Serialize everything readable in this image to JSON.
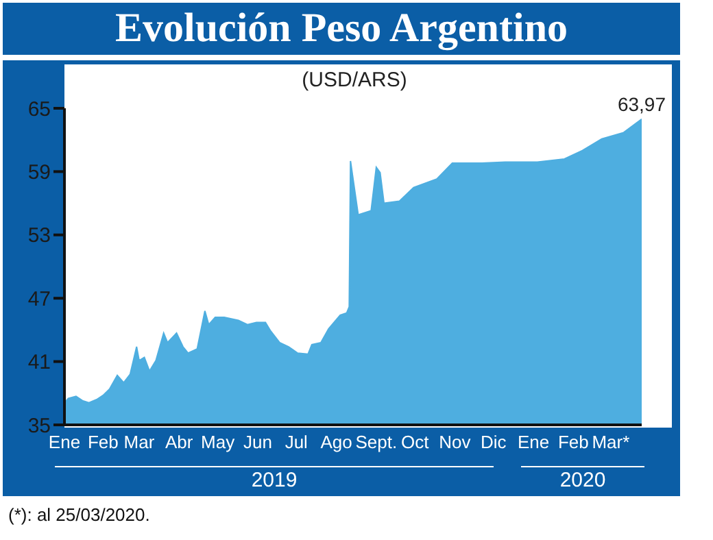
{
  "chart_data": {
    "type": "area",
    "title": "Evolución Peso Argentino",
    "subtitle": "(USD/ARS)",
    "annotations": [
      "2019",
      "2020",
      "(*): al 25/03/2020."
    ],
    "x": [
      "2019-01-02",
      "2019-01-05",
      "2019-01-11",
      "2019-01-16",
      "2019-01-21",
      "2019-01-27",
      "2019-02-01",
      "2019-02-06",
      "2019-02-12",
      "2019-02-17",
      "2019-02-22",
      "2019-02-27",
      "2019-03-01",
      "2019-03-05",
      "2019-03-09",
      "2019-03-14",
      "2019-03-20",
      "2019-03-23",
      "2019-03-30",
      "2019-04-04",
      "2019-04-08",
      "2019-04-15",
      "2019-04-21",
      "2019-04-24",
      "2019-04-29",
      "2019-05-06",
      "2019-05-17",
      "2019-05-24",
      "2019-05-31",
      "2019-06-07",
      "2019-06-11",
      "2019-06-18",
      "2019-06-25",
      "2019-07-02",
      "2019-07-10",
      "2019-07-13",
      "2019-07-20",
      "2019-07-26",
      "2019-08-04",
      "2019-08-09",
      "2019-08-11",
      "2019-08-12",
      "2019-08-18",
      "2019-08-28",
      "2019-09-01",
      "2019-09-04",
      "2019-09-07",
      "2019-09-19",
      "2019-09-30",
      "2019-10-18",
      "2019-10-30",
      "2019-11-22",
      "2019-12-10",
      "2020-01-04",
      "2020-01-25",
      "2020-02-08",
      "2020-02-23",
      "2020-03-11",
      "2020-03-25"
    ],
    "series": [
      {
        "color": "#4eaee0",
        "values": [
          37.1,
          37.5,
          37.7,
          37.3,
          37.1,
          37.4,
          37.8,
          38.4,
          39.7,
          39.0,
          39.8,
          42.4,
          41.1,
          41.4,
          40.1,
          41.1,
          43.7,
          42.8,
          43.7,
          42.4,
          41.8,
          42.2,
          45.8,
          44.5,
          45.2,
          45.2,
          44.9,
          44.5,
          44.7,
          44.7,
          43.9,
          42.8,
          42.4,
          41.8,
          41.7,
          42.6,
          42.8,
          44.1,
          45.4,
          45.6,
          46.2,
          60.0,
          54.9,
          55.3,
          59.4,
          58.9,
          56.0,
          56.2,
          57.5,
          58.3,
          59.8,
          59.8,
          59.9,
          59.9,
          60.2,
          61.0,
          62.1,
          62.7,
          63.97
        ],
        "value_labels": [
          null,
          null,
          null,
          null,
          null,
          null,
          null,
          null,
          null,
          null,
          null,
          null,
          null,
          null,
          null,
          null,
          null,
          null,
          null,
          null,
          null,
          null,
          null,
          null,
          null,
          null,
          null,
          null,
          null,
          null,
          null,
          null,
          null,
          null,
          null,
          null,
          null,
          null,
          null,
          null,
          null,
          null,
          null,
          null,
          null,
          null,
          null,
          null,
          null,
          null,
          null,
          null,
          null,
          null,
          null,
          null,
          null,
          null,
          "63,97"
        ]
      }
    ],
    "xlim": [
      "2019-01-02",
      "2020-03-25"
    ],
    "xticks": [
      {
        "value": "2019-01-02",
        "label": "Ene"
      },
      {
        "value": "2019-02-01",
        "label": "Feb"
      },
      {
        "value": "2019-03-01",
        "label": "Mar"
      },
      {
        "value": "2019-04-01",
        "label": "Abr"
      },
      {
        "value": "2019-05-01",
        "label": "May"
      },
      {
        "value": "2019-06-01",
        "label": "Jun"
      },
      {
        "value": "2019-07-01",
        "label": "Jul"
      },
      {
        "value": "2019-08-01",
        "label": "Ago"
      },
      {
        "value": "2019-09-01",
        "label": "Sept."
      },
      {
        "value": "2019-10-01",
        "label": "Oct"
      },
      {
        "value": "2019-11-01",
        "label": "Nov"
      },
      {
        "value": "2019-12-01",
        "label": "Dic"
      },
      {
        "value": "2020-01-01",
        "label": "Ene"
      },
      {
        "value": "2020-02-01",
        "label": "Feb"
      },
      {
        "value": "2020-03-01",
        "label": "Mar*"
      }
    ],
    "ylim": [
      35,
      65
    ],
    "yticks": [
      35,
      41,
      47,
      53,
      59,
      65
    ],
    "grid": false,
    "legend": false
  }
}
